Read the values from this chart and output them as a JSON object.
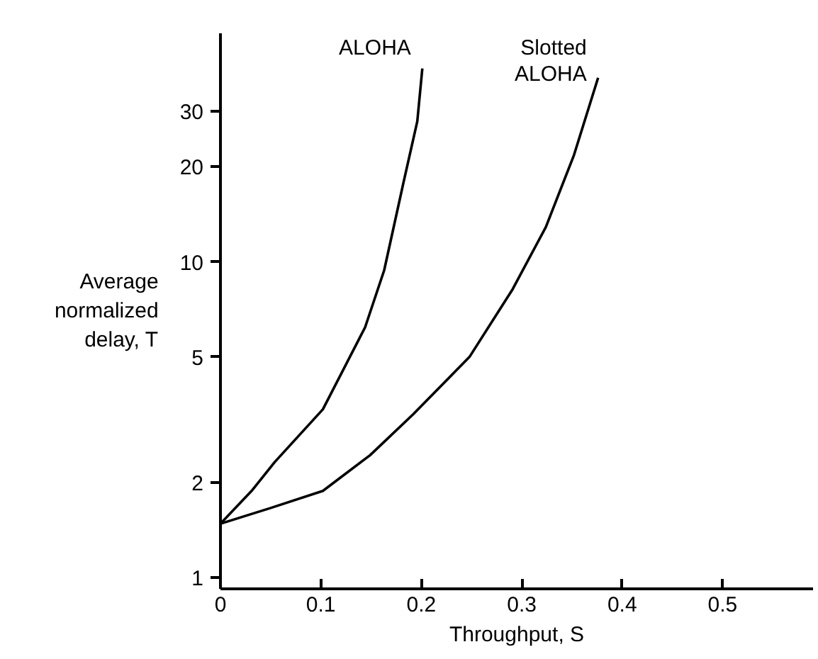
{
  "chart_data": {
    "type": "line",
    "xlabel": "Throughput, S",
    "ylabel": "Average normalized delay, T",
    "log": "y",
    "grid": false,
    "marker": "none",
    "line_style": "solid",
    "xlim": [
      0,
      0.59
    ],
    "ylim": [
      0.92,
      53
    ],
    "xticks": [
      0,
      0.1,
      0.2,
      0.3,
      0.4,
      0.5
    ],
    "yticks": [
      1,
      2,
      5,
      10,
      20,
      30
    ],
    "series": [
      {
        "name": "ALOHA",
        "color": "#000000",
        "x": [
          0,
          0.031,
          0.054,
          0.102,
          0.144,
          0.163,
          0.182,
          0.196,
          0.201
        ],
        "values": [
          1.48,
          1.88,
          2.32,
          3.41,
          6.2,
          9.4,
          17.7,
          27.9,
          41
        ]
      },
      {
        "name": "Slotted ALOHA",
        "color": "#000000",
        "x": [
          0,
          0.05,
          0.102,
          0.149,
          0.192,
          0.248,
          0.291,
          0.324,
          0.352,
          0.376
        ],
        "values": [
          1.48,
          1.66,
          1.88,
          2.44,
          3.29,
          5.0,
          8.2,
          12.9,
          21.8,
          38.3
        ]
      }
    ]
  }
}
